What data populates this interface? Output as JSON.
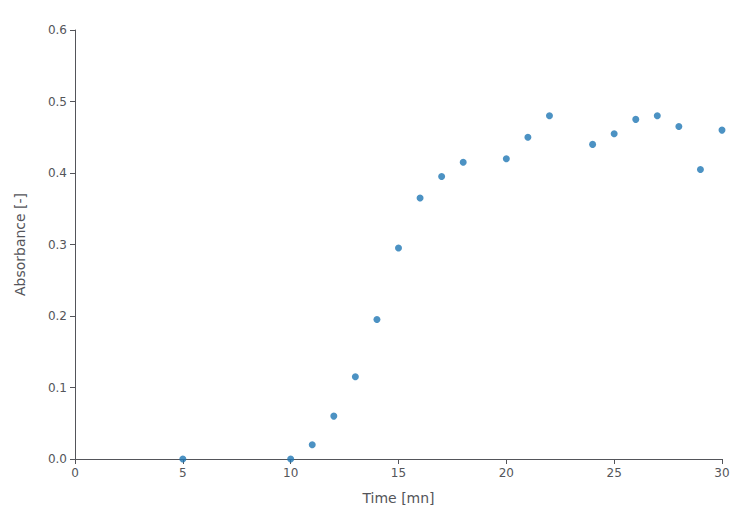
{
  "chart_data": {
    "type": "scatter",
    "x": [
      5,
      10,
      11,
      12,
      13,
      14,
      15,
      16,
      17,
      18,
      20,
      21,
      22,
      24,
      25,
      26,
      27,
      28,
      29,
      30
    ],
    "y": [
      0.0,
      0.0,
      0.02,
      0.06,
      0.115,
      0.195,
      0.295,
      0.365,
      0.395,
      0.415,
      0.42,
      0.45,
      0.48,
      0.44,
      0.455,
      0.475,
      0.48,
      0.465,
      0.405,
      0.46
    ],
    "xlabel": "Time [mn]",
    "ylabel": "Absorbance [-]",
    "xlim": [
      0,
      30
    ],
    "ylim": [
      0.0,
      0.6
    ],
    "xticks": [
      0,
      5,
      10,
      15,
      20,
      25,
      30
    ],
    "yticks": [
      {
        "value": 0.0,
        "label": "0.0"
      },
      0.1,
      0.2,
      0.3,
      0.4,
      0.5,
      0.6
    ],
    "color": "#1f77b4",
    "grid": false
  }
}
